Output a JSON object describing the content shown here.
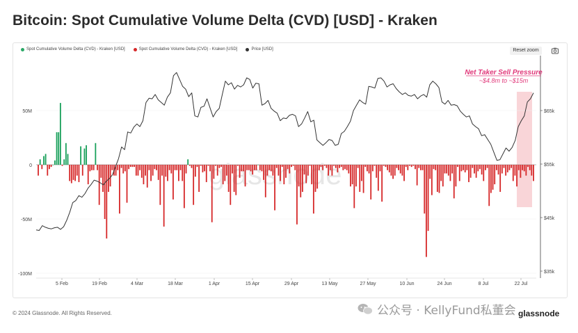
{
  "title": "Bitcoin: Spot Cumulative Volume Delta (CVD) [USD] - Kraken",
  "legend": [
    {
      "label": "Spot Cumulative Volume Delta (CVD) - Kraken [USD]",
      "color": "#2aa866"
    },
    {
      "label": "Spot Cumulative Volume Delta (CVD) - Kraken [USD]",
      "color": "#d62728"
    },
    {
      "label": "Price [USD]",
      "color": "#333333"
    }
  ],
  "reset_zoom_label": "Reset zoom",
  "footer": "© 2024 Glassnode. All Rights Reserved.",
  "watermark_text": "公众号 · KellyFund私董会",
  "logo_text": "glassnode",
  "annotation": {
    "title": "Net Taker Sell Pressure",
    "subtitle": "~$4.8m to ~$15m"
  },
  "colors": {
    "positive": "#18a05a",
    "negative": "#d62728",
    "price": "#333333",
    "annotation": "#e0387a",
    "highlight": "#f6c3c8"
  },
  "chart_data": {
    "type": "bar",
    "xlabels": [
      "5 Feb",
      "19 Feb",
      "4 Mar",
      "18 Mar",
      "1 Apr",
      "15 Apr",
      "29 Apr",
      "13 May",
      "27 May",
      "10 Jun",
      "24 Jun",
      "8 Jul",
      "22 Jul"
    ],
    "y_left_ticks": [
      "50M",
      "0",
      "-50M",
      "-100M"
    ],
    "y_left_values": [
      50,
      0,
      -50,
      -100
    ],
    "y_right_ticks": [
      "$65k",
      "$55k",
      "$45k",
      "$35k"
    ],
    "y_right_values": [
      65,
      55,
      45,
      35
    ],
    "ylim_left": [
      -100,
      80
    ],
    "ylim_right": [
      35,
      70
    ],
    "series": [
      {
        "name": "Spot Cumulative Volume Delta (CVD) - Kraken [USD]",
        "unit": "M USD",
        "values": [
          -10,
          5,
          -4,
          8,
          10,
          -10,
          -4,
          -2,
          0,
          4,
          30,
          30,
          57,
          -1,
          5,
          20,
          10,
          -15,
          -17,
          -14,
          -15,
          -10,
          -16,
          17,
          -10,
          15,
          18,
          -18,
          -6,
          -5,
          -5,
          20,
          -5,
          -37,
          -12,
          -25,
          -50,
          -68,
          -25,
          -20,
          -5,
          -10,
          -10,
          -5,
          -45,
          -3,
          -8,
          -6,
          -35,
          -4,
          -2,
          -2,
          -2,
          -10,
          -10,
          -5,
          -12,
          -18,
          -10,
          -21,
          -5,
          -15,
          -10,
          -4,
          -5,
          -14,
          -37,
          -10,
          -57,
          -11,
          -15,
          -5,
          -8,
          -32,
          -5,
          -5,
          -15,
          -5,
          -15,
          -40,
          -8,
          5,
          -1,
          -3,
          -37,
          -11,
          -2,
          -25,
          -1,
          -7,
          -6,
          -16,
          -1,
          -6,
          -53,
          -13,
          -1,
          -10,
          -3,
          -2,
          -18,
          -15,
          -10,
          -25,
          -37,
          -8,
          -25,
          -28,
          -1,
          -12,
          -6,
          -6,
          -20,
          -5,
          -5,
          -6,
          -9,
          -5,
          -5,
          0,
          -5,
          -6,
          -14,
          -30,
          -10,
          -5,
          -6,
          -10,
          -42,
          -3,
          -10,
          -15,
          -2,
          -18,
          -12,
          -4,
          -8,
          -2,
          -1,
          -5,
          -55,
          -20,
          -30,
          -25,
          -9,
          -17,
          -10,
          -1,
          -18,
          -45,
          -25,
          -22,
          -5,
          -2,
          -5,
          -1,
          -3,
          -10,
          -5,
          -10,
          -1,
          -3,
          -7,
          -3,
          -2,
          -5,
          -4,
          -5,
          -8,
          -20,
          -18,
          -40,
          -20,
          -3,
          -25,
          -15,
          -26,
          -2,
          -6,
          -8,
          -32,
          -6,
          -1,
          -12,
          -24,
          -6,
          -34,
          -1,
          -2,
          -5,
          -7,
          -10,
          -13,
          -10,
          -3,
          -5,
          -8,
          -10,
          -15,
          -2,
          -5,
          -1,
          -2,
          -1,
          -4,
          -19,
          -3,
          -5,
          -5,
          -45,
          -85,
          -61,
          -13,
          -28,
          -4,
          -5,
          -25,
          -26,
          -15,
          -20,
          -8,
          -8,
          -10,
          -15,
          -8,
          -31,
          -20,
          -2,
          -15,
          -6,
          -5,
          -7,
          -5,
          -16,
          -12,
          -3,
          -8,
          -12,
          -6,
          -4,
          -9,
          -15,
          -5,
          -3,
          -38,
          -26,
          -23,
          -18,
          -5,
          -9,
          -25,
          -8,
          -3,
          -10,
          -7,
          -5,
          -3,
          -15,
          -10,
          -20,
          -5,
          -12,
          -5,
          -6,
          -10,
          -2,
          -5,
          -10,
          -15
        ]
      },
      {
        "name": "Price [USD]",
        "unit": "k USD",
        "values": [
          42.7,
          42.6,
          43.5,
          43.2,
          43.0,
          42.9,
          43.1,
          43.2,
          42.8,
          43.3,
          44.5,
          46.0,
          47.8,
          48.2,
          49.1,
          48.8,
          49.5,
          50.5,
          51.2,
          52.0,
          51.8,
          51.5,
          51.1,
          51.8,
          52.3,
          53.0,
          54.5,
          56.0,
          58.2,
          57.7,
          61.0,
          60.8,
          61.9,
          62.5,
          62.0,
          63.1,
          66.5,
          67.3,
          67.2,
          68.0,
          67.0,
          66.5,
          66.0,
          67.5,
          68.3,
          71.5,
          72.1,
          70.8,
          69.5,
          69.0,
          67.6,
          68.3,
          64.0,
          63.8,
          65.6,
          65.8,
          67.2,
          65.5,
          63.8,
          64.8,
          65.4,
          68.0,
          70.5,
          69.8,
          70.2,
          69.0,
          69.7,
          69.4,
          69.8,
          71.1,
          70.8,
          69.2,
          70.1,
          70.0,
          66.0,
          66.3,
          66.9,
          65.4,
          64.9,
          64.5,
          63.1,
          63.6,
          63.5,
          64.1,
          64.3,
          64.0,
          62.0,
          62.5,
          63.6,
          64.8,
          62.9,
          63.2,
          59.5,
          59.0,
          58.5,
          59.0,
          59.6,
          59.4,
          58.5,
          58.7,
          60.7,
          61.1,
          62.0,
          63.0,
          65.0,
          66.0,
          67.0,
          66.5,
          66.2,
          69.5,
          69.4,
          69.2,
          71.0,
          71.1,
          70.5,
          69.4,
          69.8,
          70.0,
          69.1,
          68.5,
          68.0,
          68.3,
          67.8,
          67.7,
          68.0,
          67.2,
          67.7,
          68.0,
          67.5,
          69.8,
          70.5,
          70.0,
          69.3,
          66.6,
          66.2,
          66.9,
          66.0,
          66.1,
          65.9,
          64.9,
          64.3,
          63.8,
          64.0,
          62.5,
          62.0,
          61.6,
          60.3,
          60.5,
          59.6,
          58.7,
          57.2,
          55.7,
          55.8,
          56.9,
          58.0,
          57.4,
          58.1,
          59.4,
          62.0,
          63.1,
          64.0,
          66.6,
          67.2,
          68.3
        ],
        "note": "price approximated from line shape"
      }
    ]
  }
}
